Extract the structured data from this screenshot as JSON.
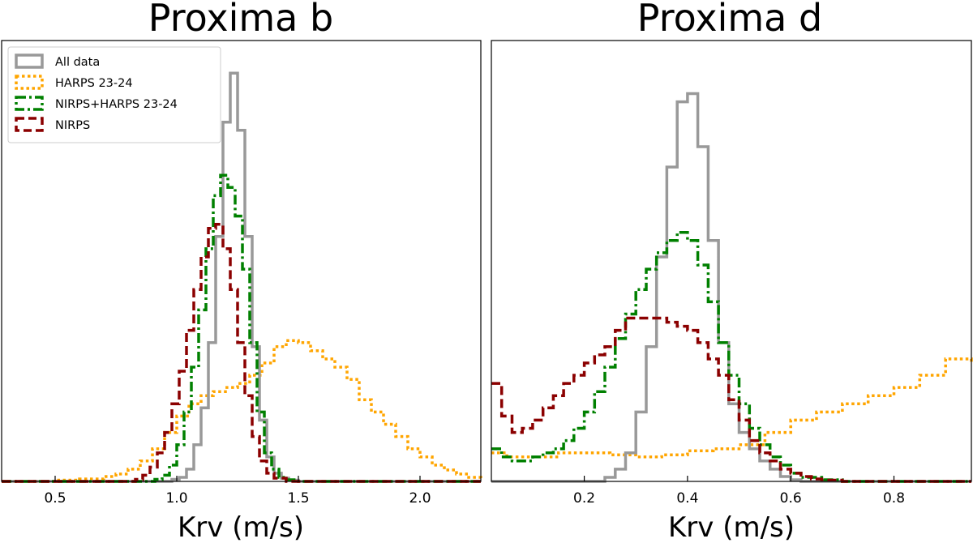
{
  "chart_data": [
    {
      "type": "histogram",
      "title": "Proxima b",
      "xlabel": "Krv (m/s)",
      "ylabel": "",
      "xlim": [
        0.28,
        2.25
      ],
      "ylim": [
        0,
        1.08
      ],
      "xticks": [
        0.5,
        1.0,
        1.5,
        2.0
      ],
      "xtick_labels": [
        "0.5",
        "1.0",
        "1.5",
        "2.0"
      ],
      "y_ticks_labeled": false,
      "legend": {
        "position": "top-left",
        "entries": [
          "All data",
          "HARPS 23-24",
          "NIRPS+HARPS 23-24",
          "NIRPS"
        ]
      },
      "series": [
        {
          "name": "All data",
          "color": "#999999",
          "style": "solid",
          "x": [
            0.28,
            0.95,
            0.98,
            1.01,
            1.04,
            1.07,
            1.1,
            1.13,
            1.16,
            1.19,
            1.22,
            1.25,
            1.28,
            1.31,
            1.34,
            1.37,
            1.4,
            1.43,
            1.46,
            1.5,
            2.25
          ],
          "y": [
            0.0,
            0.0,
            0.005,
            0.01,
            0.03,
            0.09,
            0.18,
            0.34,
            0.6,
            0.88,
            1.0,
            0.86,
            0.6,
            0.33,
            0.15,
            0.06,
            0.02,
            0.008,
            0.003,
            0.0,
            0.0
          ]
        },
        {
          "name": "HARPS 23-24",
          "color": "#ffa500",
          "style": "dotted",
          "x": [
            0.28,
            0.4,
            0.5,
            0.6,
            0.7,
            0.75,
            0.8,
            0.85,
            0.9,
            0.95,
            1.0,
            1.05,
            1.1,
            1.15,
            1.2,
            1.25,
            1.3,
            1.35,
            1.4,
            1.45,
            1.5,
            1.55,
            1.6,
            1.65,
            1.7,
            1.75,
            1.8,
            1.85,
            1.9,
            1.95,
            2.0,
            2.05,
            2.1,
            2.15,
            2.2,
            2.25
          ],
          "y": [
            0.0,
            0.0,
            0.003,
            0.006,
            0.012,
            0.018,
            0.03,
            0.05,
            0.08,
            0.12,
            0.16,
            0.19,
            0.21,
            0.22,
            0.23,
            0.24,
            0.26,
            0.29,
            0.33,
            0.345,
            0.34,
            0.32,
            0.3,
            0.28,
            0.25,
            0.2,
            0.17,
            0.14,
            0.11,
            0.08,
            0.06,
            0.04,
            0.028,
            0.018,
            0.01,
            0.005
          ]
        },
        {
          "name": "NIRPS+HARPS 23-24",
          "color": "#008000",
          "style": "dashdot",
          "x": [
            0.28,
            0.88,
            0.91,
            0.94,
            0.97,
            1.0,
            1.03,
            1.06,
            1.09,
            1.12,
            1.15,
            1.18,
            1.21,
            1.24,
            1.27,
            1.3,
            1.33,
            1.36,
            1.39,
            1.42,
            1.45,
            1.5,
            2.25
          ],
          "y": [
            0.0,
            0.0,
            0.005,
            0.015,
            0.04,
            0.09,
            0.17,
            0.28,
            0.42,
            0.57,
            0.7,
            0.75,
            0.72,
            0.65,
            0.52,
            0.34,
            0.17,
            0.07,
            0.03,
            0.01,
            0.004,
            0.0,
            0.0
          ]
        },
        {
          "name": "NIRPS",
          "color": "#8b0000",
          "style": "dashed",
          "x": [
            0.28,
            0.8,
            0.83,
            0.86,
            0.89,
            0.92,
            0.95,
            0.98,
            1.01,
            1.04,
            1.07,
            1.1,
            1.13,
            1.16,
            1.19,
            1.22,
            1.25,
            1.28,
            1.31,
            1.34,
            1.37,
            1.4,
            1.45,
            2.25
          ],
          "y": [
            0.0,
            0.0,
            0.005,
            0.015,
            0.035,
            0.07,
            0.12,
            0.19,
            0.27,
            0.37,
            0.47,
            0.55,
            0.62,
            0.63,
            0.57,
            0.47,
            0.34,
            0.21,
            0.11,
            0.05,
            0.02,
            0.008,
            0.0,
            0.0
          ]
        }
      ]
    },
    {
      "type": "histogram",
      "title": "Proxima d",
      "xlabel": "Krv (m/s)",
      "ylabel": "",
      "xlim": [
        0.02,
        0.95
      ],
      "ylim": [
        0,
        1.08
      ],
      "xticks": [
        0.2,
        0.4,
        0.6,
        0.8
      ],
      "xtick_labels": [
        "0.2",
        "0.4",
        "0.6",
        "0.8"
      ],
      "y_ticks_labeled": false,
      "legend": null,
      "series": [
        {
          "name": "All data",
          "color": "#999999",
          "style": "solid",
          "x": [
            0.02,
            0.22,
            0.24,
            0.26,
            0.28,
            0.3,
            0.32,
            0.34,
            0.36,
            0.38,
            0.4,
            0.42,
            0.44,
            0.46,
            0.48,
            0.5,
            0.52,
            0.54,
            0.56,
            0.58,
            0.6,
            0.62,
            0.95
          ],
          "y": [
            0.0,
            0.0,
            0.01,
            0.03,
            0.07,
            0.17,
            0.33,
            0.55,
            0.77,
            0.93,
            0.95,
            0.82,
            0.59,
            0.34,
            0.19,
            0.12,
            0.08,
            0.05,
            0.03,
            0.012,
            0.004,
            0.0,
            0.0
          ]
        },
        {
          "name": "HARPS 23-24",
          "color": "#ffa500",
          "style": "dotted",
          "x": [
            0.02,
            0.05,
            0.1,
            0.15,
            0.2,
            0.25,
            0.3,
            0.35,
            0.4,
            0.45,
            0.5,
            0.55,
            0.6,
            0.65,
            0.7,
            0.75,
            0.8,
            0.85,
            0.9,
            0.95
          ],
          "y": [
            0.07,
            0.06,
            0.06,
            0.07,
            0.07,
            0.065,
            0.06,
            0.065,
            0.075,
            0.08,
            0.09,
            0.12,
            0.15,
            0.17,
            0.19,
            0.21,
            0.23,
            0.26,
            0.3,
            0.29
          ]
        },
        {
          "name": "NIRPS+HARPS 23-24",
          "color": "#008000",
          "style": "dashdot",
          "x": [
            0.02,
            0.04,
            0.06,
            0.08,
            0.1,
            0.12,
            0.14,
            0.16,
            0.18,
            0.2,
            0.22,
            0.24,
            0.26,
            0.28,
            0.3,
            0.32,
            0.34,
            0.36,
            0.38,
            0.4,
            0.42,
            0.44,
            0.46,
            0.48,
            0.5,
            0.52,
            0.54,
            0.56,
            0.58,
            0.6,
            0.62,
            0.66,
            0.7,
            0.95
          ],
          "y": [
            0.08,
            0.06,
            0.05,
            0.05,
            0.06,
            0.07,
            0.08,
            0.1,
            0.13,
            0.17,
            0.22,
            0.28,
            0.35,
            0.41,
            0.47,
            0.52,
            0.56,
            0.59,
            0.61,
            0.59,
            0.53,
            0.44,
            0.34,
            0.26,
            0.19,
            0.13,
            0.09,
            0.06,
            0.04,
            0.02,
            0.01,
            0.004,
            0.0,
            0.0
          ]
        },
        {
          "name": "NIRPS",
          "color": "#8b0000",
          "style": "dashed",
          "x": [
            0.02,
            0.04,
            0.06,
            0.08,
            0.1,
            0.12,
            0.14,
            0.16,
            0.18,
            0.2,
            0.22,
            0.24,
            0.26,
            0.28,
            0.3,
            0.32,
            0.34,
            0.36,
            0.38,
            0.4,
            0.42,
            0.44,
            0.46,
            0.48,
            0.5,
            0.52,
            0.54,
            0.56,
            0.58,
            0.6,
            0.62,
            0.64,
            0.66,
            0.7,
            0.95
          ],
          "y": [
            0.24,
            0.16,
            0.12,
            0.13,
            0.15,
            0.18,
            0.21,
            0.24,
            0.26,
            0.29,
            0.31,
            0.33,
            0.37,
            0.4,
            0.4,
            0.4,
            0.4,
            0.39,
            0.38,
            0.37,
            0.34,
            0.3,
            0.26,
            0.2,
            0.15,
            0.1,
            0.07,
            0.05,
            0.03,
            0.02,
            0.012,
            0.006,
            0.003,
            0.0,
            0.0
          ]
        }
      ]
    }
  ]
}
